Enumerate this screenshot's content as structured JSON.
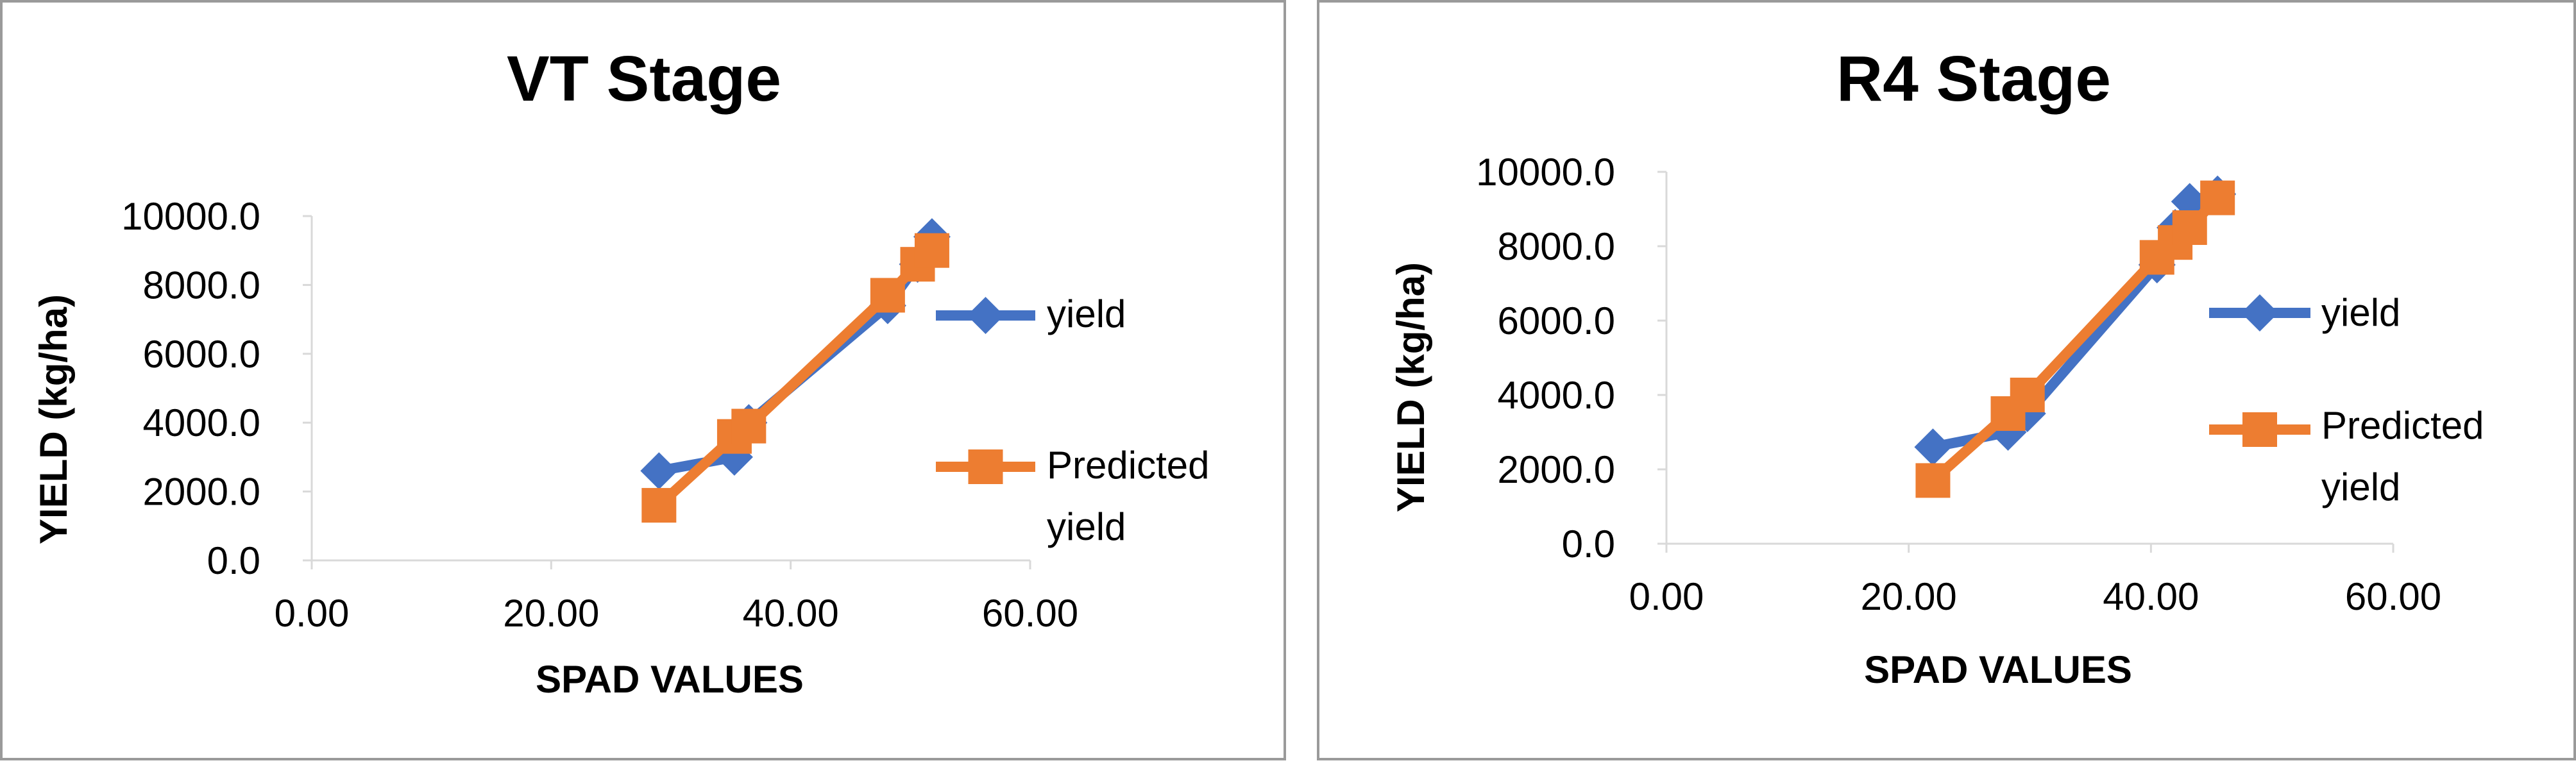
{
  "chart_data": [
    {
      "type": "line",
      "title": "VT Stage",
      "xlabel": "SPAD VALUES",
      "ylabel": "YIELD (kg/ha)",
      "xlim": [
        0,
        60
      ],
      "ylim": [
        0,
        10000
      ],
      "x_ticks": [
        "0.00",
        "20.00",
        "40.00",
        "60.00"
      ],
      "y_ticks": [
        "0.0",
        "2000.0",
        "4000.0",
        "6000.0",
        "8000.0",
        "10000.0"
      ],
      "legend_position": "right",
      "grid": false,
      "series": [
        {
          "name": "yield",
          "color": "#4472C4",
          "marker": "diamond",
          "x": [
            29.0,
            35.3,
            36.5,
            48.1,
            50.6,
            51.8
          ],
          "y": [
            2600,
            3000,
            4000,
            7400,
            8600,
            9400
          ]
        },
        {
          "name": "Predicted yield",
          "color": "#ED7D31",
          "marker": "square",
          "x": [
            29.0,
            35.3,
            36.5,
            48.1,
            50.6,
            51.8
          ],
          "y": [
            1600,
            3600,
            3900,
            7700,
            8600,
            9000
          ]
        }
      ]
    },
    {
      "type": "line",
      "title": "R4 Stage",
      "xlabel": "SPAD VALUES",
      "ylabel": "YIELD (kg/ha)",
      "xlim": [
        0,
        60
      ],
      "ylim": [
        0,
        10000
      ],
      "x_ticks": [
        "0.00",
        "20.00",
        "40.00",
        "60.00"
      ],
      "y_ticks": [
        "0.0",
        "2000.0",
        "4000.0",
        "6000.0",
        "8000.0",
        "10000.0"
      ],
      "legend_position": "right",
      "grid": false,
      "series": [
        {
          "name": "yield",
          "color": "#4472C4",
          "marker": "diamond",
          "x": [
            22.0,
            28.2,
            29.8,
            40.5,
            42.0,
            43.2,
            45.5
          ],
          "y": [
            2600,
            3000,
            3500,
            7500,
            8500,
            9200,
            9400
          ]
        },
        {
          "name": "Predicted yield",
          "color": "#ED7D31",
          "marker": "square",
          "x": [
            22.0,
            28.2,
            29.8,
            40.5,
            42.0,
            43.2,
            45.5
          ],
          "y": [
            1700,
            3500,
            4000,
            7700,
            8100,
            8500,
            9300
          ]
        }
      ]
    }
  ]
}
